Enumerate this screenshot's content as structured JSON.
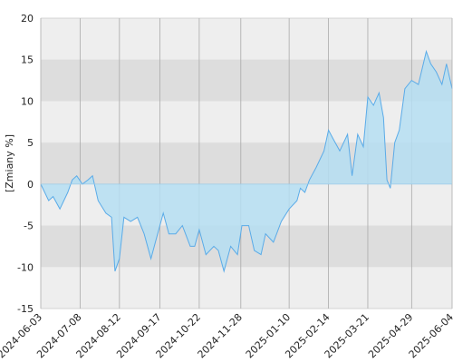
{
  "chart_data": {
    "type": "area",
    "y_label": "[Zmiany %]",
    "x": [
      "2024-06-03",
      "2024-06-10",
      "2024-06-14",
      "2024-06-20",
      "2024-06-27",
      "2024-07-01",
      "2024-07-05",
      "2024-07-10",
      "2024-07-15",
      "2024-07-19",
      "2024-07-24",
      "2024-07-31",
      "2024-08-05",
      "2024-08-08",
      "2024-08-12",
      "2024-08-16",
      "2024-08-22",
      "2024-08-28",
      "2024-09-03",
      "2024-09-09",
      "2024-09-13",
      "2024-09-20",
      "2024-09-25",
      "2024-10-01",
      "2024-10-07",
      "2024-10-14",
      "2024-10-18",
      "2024-10-22",
      "2024-10-28",
      "2024-11-04",
      "2024-11-08",
      "2024-11-13",
      "2024-11-19",
      "2024-11-25",
      "2024-11-29",
      "2024-12-05",
      "2024-12-10",
      "2024-12-16",
      "2024-12-20",
      "2024-12-27",
      "2025-01-03",
      "2025-01-10",
      "2025-01-17",
      "2025-01-20",
      "2025-01-24",
      "2025-01-28",
      "2025-02-03",
      "2025-02-10",
      "2025-02-14",
      "2025-02-18",
      "2025-02-24",
      "2025-03-03",
      "2025-03-07",
      "2025-03-12",
      "2025-03-17",
      "2025-03-21",
      "2025-03-26",
      "2025-03-31",
      "2025-04-04",
      "2025-04-07",
      "2025-04-10",
      "2025-04-14",
      "2025-04-18",
      "2025-04-23",
      "2025-04-29",
      "2025-05-05",
      "2025-05-12",
      "2025-05-16",
      "2025-05-21",
      "2025-05-26",
      "2025-05-30",
      "2025-06-04"
    ],
    "values": [
      0,
      -2,
      -1.5,
      -3,
      -1,
      0.5,
      1,
      0,
      0.5,
      1,
      -2,
      -3.5,
      -4,
      -10.5,
      -9,
      -4,
      -4.5,
      -4,
      -6,
      -9,
      -7,
      -3.5,
      -6,
      -6,
      -5,
      -7.5,
      -7.5,
      -5.5,
      -8.5,
      -7.5,
      -8,
      -10.5,
      -7.5,
      -8.5,
      -5,
      -5,
      -8,
      -8.5,
      -6,
      -7,
      -4.5,
      -3,
      -2,
      -0.5,
      -1,
      0.5,
      2,
      4,
      6.5,
      5.5,
      4,
      6,
      1,
      6,
      4.5,
      10.5,
      9.5,
      11,
      8,
      0.5,
      -0.5,
      5,
      6.5,
      11.5,
      12.5,
      12,
      16,
      14.5,
      13.5,
      12,
      14.5,
      11.5
    ],
    "line_color": "#5aabe8",
    "fill_color": "#b5def2",
    "xlim": [
      "2024-06-03",
      "2025-06-04"
    ],
    "xticks": [
      "2024-06-03",
      "2024-07-08",
      "2024-08-12",
      "2024-09-17",
      "2024-10-22",
      "2024-11-28",
      "2025-01-10",
      "2025-02-14",
      "2025-03-21",
      "2025-04-29",
      "2025-06-04"
    ],
    "ylim": [
      -15,
      20
    ],
    "yticks": [
      -15,
      -10,
      -5,
      0,
      5,
      10,
      15,
      20
    ],
    "grid": true
  }
}
